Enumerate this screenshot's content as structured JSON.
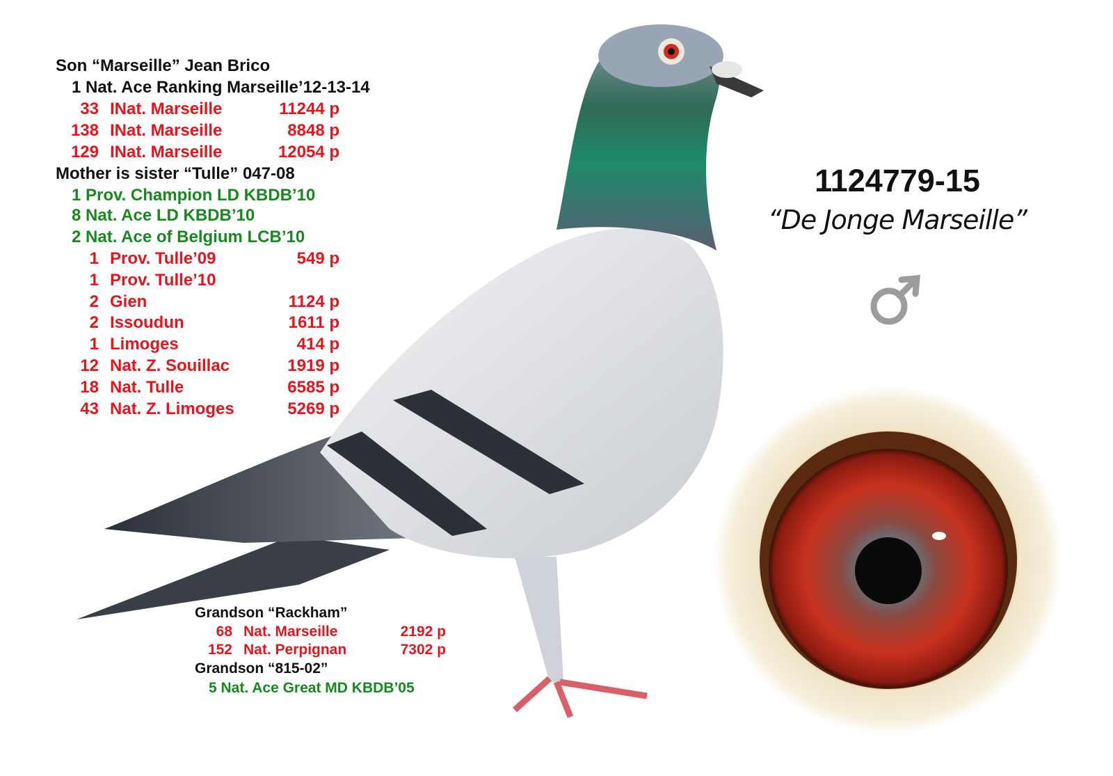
{
  "pedigree": {
    "sire_heading": "Son “Marseille” Jean Brico",
    "sire_title": "1 Nat. Ace Ranking Marseille’12-13-14",
    "sire_results": [
      {
        "rank": "33",
        "race": "INat. Marseille",
        "birds": "11244 p"
      },
      {
        "rank": "138",
        "race": "INat. Marseille",
        "birds": "8848 p"
      },
      {
        "rank": "129",
        "race": "INat. Marseille",
        "birds": "12054 p"
      }
    ],
    "dam_heading": "Mother is sister “Tulle” 047-08",
    "dam_titles": [
      "1 Prov. Champion LD KBDB’10",
      "8 Nat. Ace LD KBDB’10",
      "2 Nat. Ace of Belgium LCB’10"
    ],
    "dam_results": [
      {
        "rank": "1",
        "race": "Prov. Tulle’09",
        "birds": "549 p"
      },
      {
        "rank": "1",
        "race": "Prov. Tulle’10",
        "birds": ""
      },
      {
        "rank": "2",
        "race": "Gien",
        "birds": "1124 p"
      },
      {
        "rank": "2",
        "race": "Issoudun",
        "birds": "1611 p"
      },
      {
        "rank": "1",
        "race": "Limoges",
        "birds": "414 p"
      },
      {
        "rank": "12",
        "race": "Nat. Z. Souillac",
        "birds": "1919 p"
      },
      {
        "rank": "18",
        "race": "Nat. Tulle",
        "birds": "6585 p"
      },
      {
        "rank": "43",
        "race": "Nat. Z. Limoges",
        "birds": "5269 p"
      }
    ]
  },
  "offspring": {
    "grandson1_heading": "Grandson “Rackham”",
    "grandson1_results": [
      {
        "rank": "68",
        "race": "Nat. Marseille",
        "birds": "2192 p"
      },
      {
        "rank": "152",
        "race": "Nat. Perpignan",
        "birds": "7302 p"
      }
    ],
    "grandson2_heading": "Grandson “815-02”",
    "grandson2_title": "5 Nat. Ace Great MD KBDB’05"
  },
  "bird": {
    "ring_number": "1124779-15",
    "name": "“De Jonge Marseille”",
    "sex_icon": "male-symbol-icon"
  },
  "colors": {
    "black": "#111111",
    "red": "#e8141b",
    "green": "#168a1c",
    "male_symbol": "#9a9c9e"
  }
}
